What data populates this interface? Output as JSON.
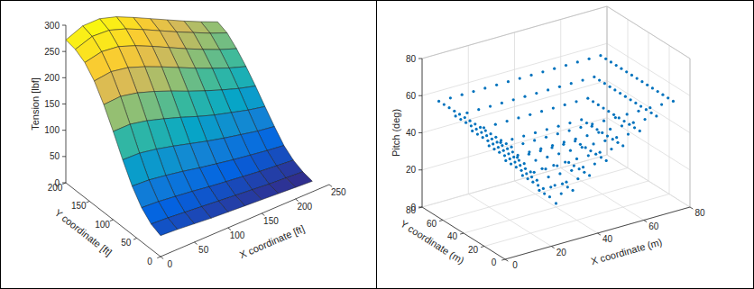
{
  "chart_data": [
    {
      "type": "surface",
      "x_label": "X coordinate [ft]",
      "y_label": "Y coordinate [ft]",
      "z_label": "Tension [lbf]",
      "x": [
        0,
        25,
        50,
        75,
        100,
        125,
        150,
        175,
        200,
        225
      ],
      "y": [
        0,
        20,
        40,
        60,
        80,
        100,
        120,
        140,
        160,
        180,
        200
      ],
      "z": [
        [
          40,
          38,
          35,
          32,
          30,
          28,
          26,
          24,
          22,
          20
        ],
        [
          48,
          46,
          43,
          40,
          37,
          34,
          31,
          28,
          26,
          24
        ],
        [
          65,
          63,
          59,
          55,
          50,
          46,
          42,
          38,
          35,
          32
        ],
        [
          92,
          90,
          85,
          79,
          72,
          66,
          60,
          55,
          50,
          46
        ],
        [
          128,
          127,
          121,
          113,
          104,
          95,
          87,
          80,
          73,
          68
        ],
        [
          168,
          168,
          161,
          151,
          140,
          128,
          117,
          108,
          99,
          92
        ],
        [
          205,
          207,
          200,
          189,
          176,
          162,
          149,
          137,
          126,
          117
        ],
        [
          236,
          240,
          234,
          222,
          208,
          193,
          178,
          164,
          151,
          140
        ],
        [
          257,
          264,
          260,
          248,
          233,
          217,
          201,
          186,
          172,
          160
        ],
        [
          268,
          279,
          277,
          266,
          251,
          235,
          219,
          204,
          189,
          176
        ],
        [
          272,
          285,
          285,
          275,
          260,
          244,
          228,
          212,
          197,
          183
        ]
      ],
      "xlim": [
        0,
        250
      ],
      "ylim": [
        0,
        200
      ],
      "zlim": [
        0,
        300
      ],
      "xticks": [
        0,
        50,
        100,
        150,
        200,
        250
      ],
      "yticks": [
        0,
        50,
        100,
        150,
        200
      ],
      "zticks": [
        0,
        50,
        100,
        150,
        200,
        250,
        300
      ],
      "grid": false
    },
    {
      "type": "scatter",
      "x_label": "X coordinate (m)",
      "y_label": "Y coordinate (m)",
      "z_label": "Pitch (deg)",
      "color": "#0072bd",
      "marker": "point",
      "x": [
        40,
        35,
        40,
        45,
        45,
        45,
        40,
        35,
        35,
        30,
        35,
        40,
        45,
        50,
        50,
        50,
        50,
        50,
        45,
        40,
        35,
        30,
        30,
        30,
        30,
        25,
        30,
        35,
        40,
        45,
        50,
        55,
        55,
        55,
        55,
        55,
        55,
        55,
        50,
        45,
        40,
        35,
        30,
        25,
        25,
        25,
        25,
        25,
        25,
        20,
        25,
        30,
        35,
        40,
        45,
        50,
        55,
        60,
        60,
        60,
        60,
        60,
        60,
        60,
        60,
        60,
        55,
        50,
        45,
        40,
        35,
        30,
        25,
        20,
        20,
        20,
        20,
        20,
        20,
        20,
        20,
        15,
        20,
        25,
        30,
        35,
        40,
        45,
        50,
        55,
        60,
        65,
        65,
        65,
        65,
        65,
        65,
        65,
        65,
        65,
        65,
        65,
        60,
        55,
        50,
        45,
        40,
        35,
        30,
        25,
        20,
        15,
        15,
        15,
        15,
        15,
        15,
        15,
        15,
        15,
        15,
        10,
        15,
        20,
        25,
        30,
        35,
        40,
        45,
        50,
        55,
        60,
        65,
        70,
        70,
        70,
        70,
        70,
        70,
        70,
        70,
        70,
        70,
        70,
        70,
        70,
        65,
        60,
        55,
        50,
        45,
        40,
        35,
        30,
        25,
        20,
        15,
        10,
        10,
        10,
        10,
        10,
        10,
        10,
        10,
        10,
        10,
        10,
        10,
        5,
        10,
        15,
        20,
        25,
        30,
        35,
        40,
        45,
        50,
        55,
        60,
        65,
        70,
        75,
        75,
        75,
        75,
        75,
        75,
        75,
        75,
        75,
        75,
        75,
        75,
        75,
        75,
        75,
        70,
        65,
        60,
        55,
        50,
        45,
        40,
        35,
        30,
        25,
        20,
        15,
        10,
        5,
        5,
        5,
        5,
        5,
        5,
        5,
        5,
        5,
        5,
        5,
        5,
        5,
        5
      ],
      "y": [
        40,
        35,
        35,
        35,
        40,
        45,
        45,
        45,
        40,
        30,
        30,
        30,
        30,
        30,
        35,
        40,
        45,
        50,
        50,
        50,
        50,
        50,
        45,
        40,
        35,
        25,
        25,
        25,
        25,
        25,
        25,
        25,
        30,
        35,
        40,
        45,
        50,
        55,
        55,
        55,
        55,
        55,
        55,
        55,
        50,
        45,
        40,
        35,
        30,
        20,
        20,
        20,
        20,
        20,
        20,
        20,
        20,
        20,
        25,
        30,
        35,
        40,
        45,
        50,
        55,
        60,
        60,
        60,
        60,
        60,
        60,
        60,
        60,
        60,
        55,
        50,
        45,
        40,
        35,
        30,
        25,
        15,
        15,
        15,
        15,
        15,
        15,
        15,
        15,
        15,
        15,
        15,
        20,
        25,
        30,
        35,
        40,
        45,
        50,
        55,
        60,
        65,
        65,
        65,
        65,
        65,
        65,
        65,
        65,
        65,
        65,
        65,
        60,
        55,
        50,
        45,
        40,
        35,
        30,
        25,
        20,
        10,
        10,
        10,
        10,
        10,
        10,
        10,
        10,
        10,
        10,
        10,
        10,
        10,
        15,
        20,
        25,
        30,
        35,
        40,
        45,
        50,
        55,
        60,
        65,
        70,
        70,
        70,
        70,
        70,
        70,
        70,
        70,
        70,
        70,
        70,
        70,
        70,
        65,
        60,
        55,
        50,
        45,
        40,
        35,
        30,
        25,
        20,
        15,
        5,
        5,
        5,
        5,
        5,
        5,
        5,
        5,
        5,
        5,
        5,
        5,
        5,
        5,
        5,
        10,
        15,
        20,
        25,
        30,
        35,
        40,
        45,
        50,
        55,
        60,
        65,
        70,
        75,
        75,
        75,
        75,
        75,
        75,
        75,
        75,
        75,
        75,
        75,
        75,
        75,
        75,
        75,
        70,
        65,
        60,
        55,
        50,
        45,
        40,
        35,
        30,
        25,
        20,
        15,
        10
      ],
      "z": [
        2,
        9,
        9,
        9,
        9,
        9,
        9,
        9,
        9,
        17,
        17,
        17,
        17,
        17,
        17,
        17,
        17,
        17,
        17,
        17,
        17,
        17,
        17,
        17,
        17,
        25,
        25,
        25,
        25,
        25,
        25,
        25,
        25,
        25,
        25,
        25,
        25,
        25,
        25,
        25,
        25,
        25,
        25,
        25,
        25,
        25,
        25,
        25,
        25,
        33,
        33,
        33,
        33,
        33,
        33,
        33,
        33,
        33,
        33,
        33,
        33,
        33,
        33,
        33,
        33,
        33,
        33,
        33,
        33,
        33,
        33,
        33,
        33,
        33,
        33,
        33,
        33,
        33,
        33,
        33,
        33,
        41,
        41,
        41,
        41,
        41,
        41,
        41,
        41,
        41,
        41,
        41,
        41,
        41,
        41,
        41,
        41,
        41,
        41,
        41,
        41,
        41,
        41,
        41,
        41,
        41,
        41,
        41,
        41,
        41,
        41,
        41,
        41,
        41,
        41,
        41,
        41,
        41,
        41,
        41,
        41,
        49,
        49,
        49,
        49,
        49,
        49,
        49,
        49,
        49,
        49,
        49,
        49,
        49,
        49,
        49,
        49,
        49,
        49,
        49,
        49,
        49,
        49,
        49,
        49,
        49,
        49,
        49,
        49,
        49,
        49,
        49,
        49,
        49,
        49,
        49,
        49,
        49,
        49,
        49,
        49,
        49,
        49,
        49,
        49,
        49,
        49,
        49,
        49,
        57,
        57,
        57,
        57,
        57,
        57,
        57,
        57,
        57,
        57,
        57,
        57,
        57,
        57,
        57,
        57,
        57,
        57,
        57,
        57,
        57,
        57,
        57,
        57,
        57,
        57,
        57,
        57,
        57,
        57,
        57,
        57,
        57,
        57,
        57,
        57,
        57,
        57,
        57,
        57,
        57,
        57,
        57,
        57,
        57,
        57,
        57,
        57,
        57,
        57,
        57,
        57,
        57,
        57,
        57,
        57
      ],
      "xlim": [
        0,
        80
      ],
      "ylim": [
        0,
        80
      ],
      "zlim": [
        0,
        80
      ],
      "xticks": [
        0,
        20,
        40,
        60,
        80
      ],
      "yticks": [
        0,
        20,
        40,
        60,
        80
      ],
      "zticks": [
        0,
        20,
        40,
        60,
        80
      ],
      "grid": true
    }
  ]
}
